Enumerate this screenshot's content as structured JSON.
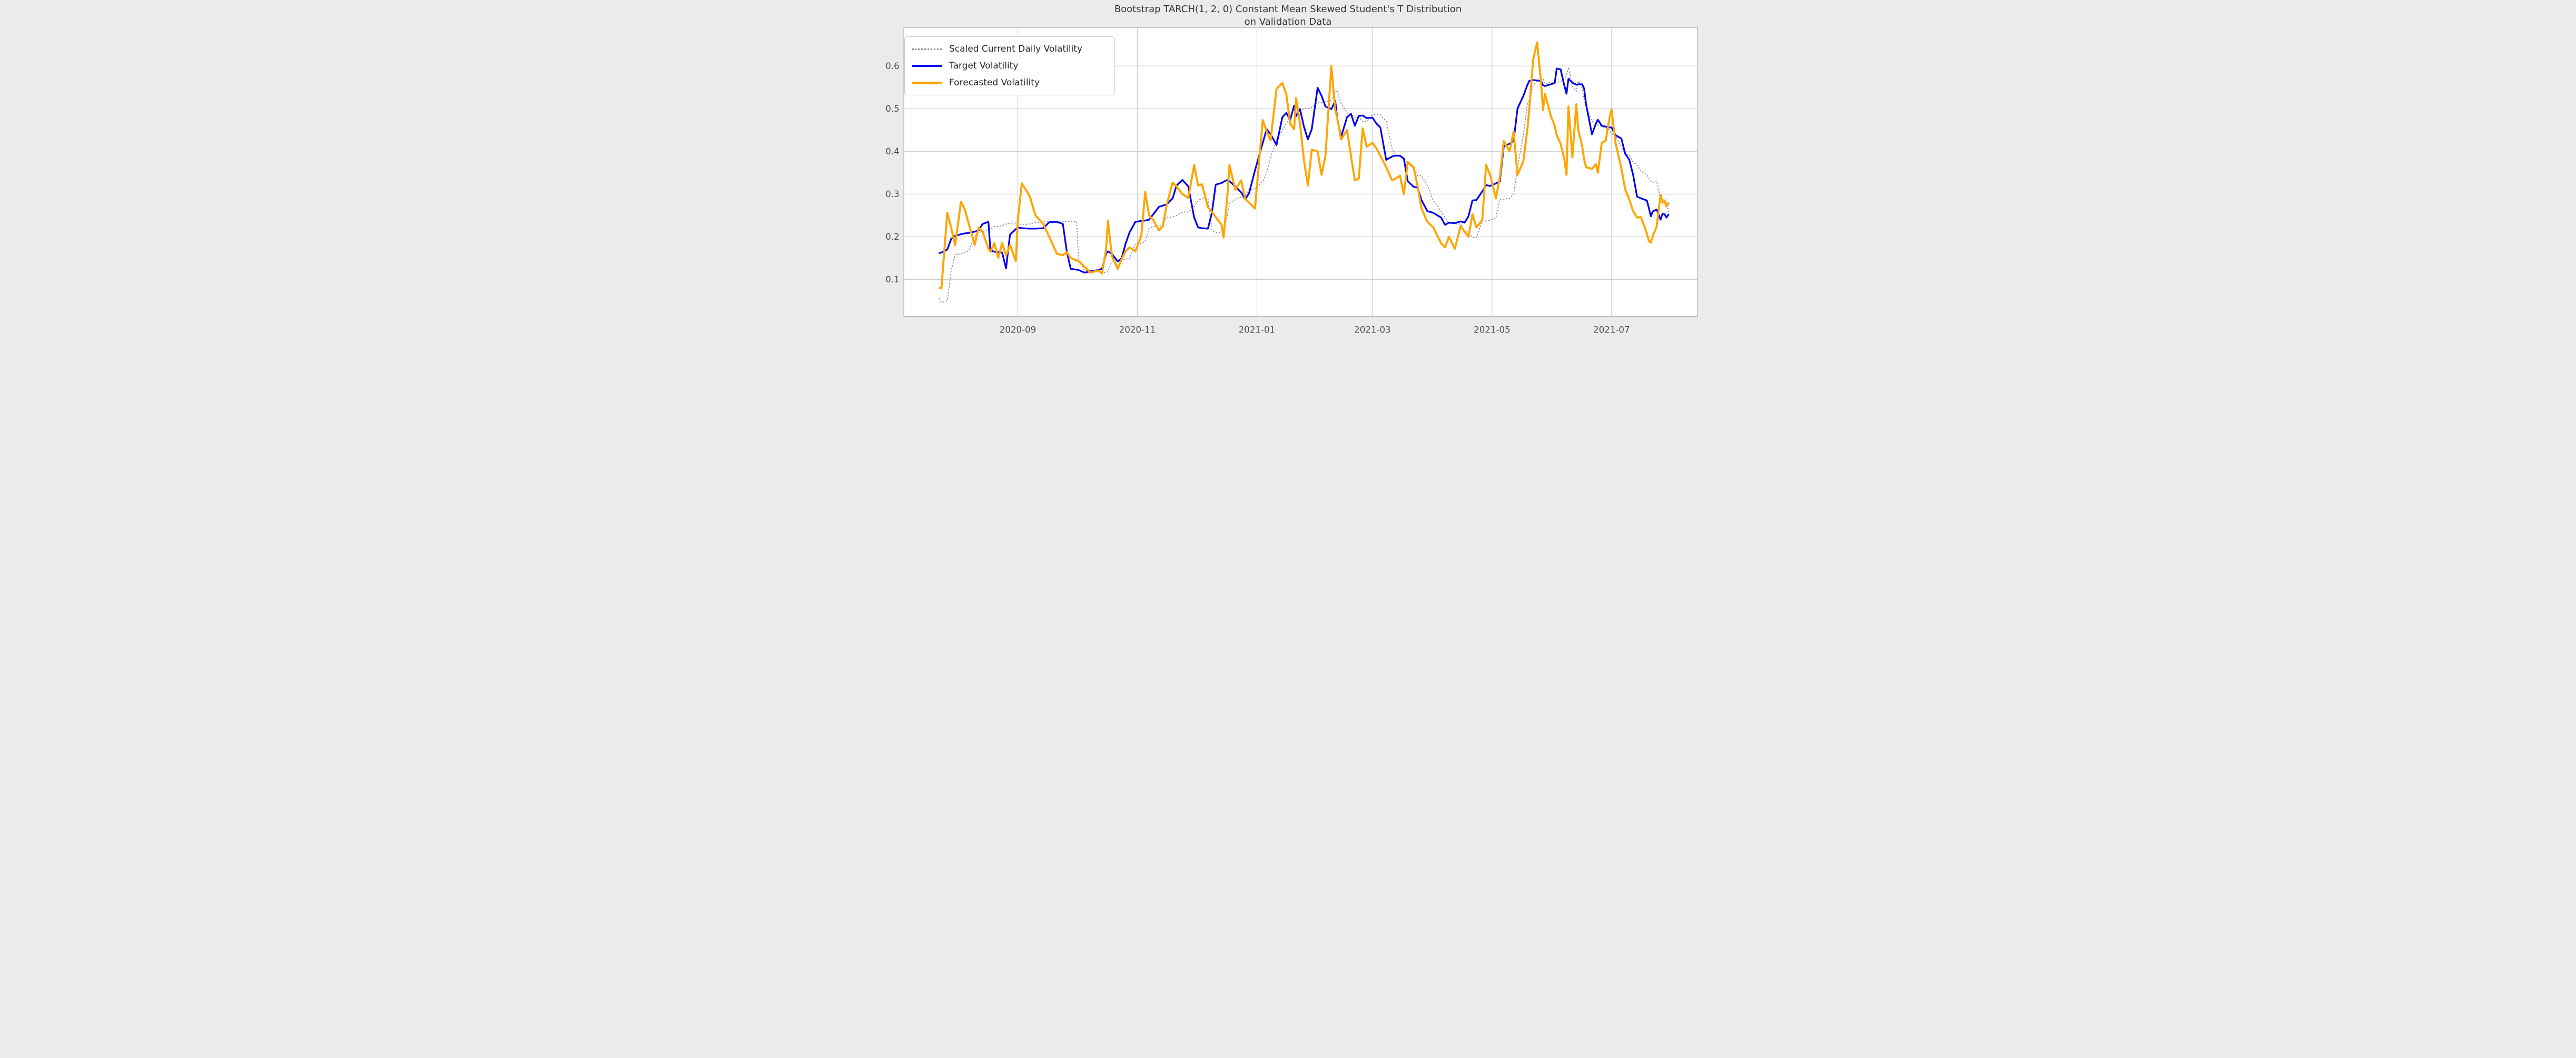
{
  "figure": {
    "title_line1": "Bootstrap TARCH(1, 2, 0) Constant Mean Skewed Student's T Distribution",
    "title_line2": "on Validation Data",
    "background_color": "#ebebeb",
    "plot_background_color": "#ffffff",
    "grid_color": "#cccccc",
    "spine_color": "#b3b3b3",
    "title_color": "#333333",
    "tick_label_color": "#4a4a4a"
  },
  "legend": {
    "position": "upper left",
    "entries": [
      {
        "label": "Scaled Current Daily Volatility",
        "color": "#8a8a8a",
        "style": "dotted"
      },
      {
        "label": "Target Volatility",
        "color": "#0000f0",
        "style": "solid-blue"
      },
      {
        "label": "Forecasted Volatility",
        "color": "#ffa500",
        "style": "solid-orange"
      }
    ]
  },
  "chart_data": {
    "type": "line",
    "title": "Bootstrap TARCH(1, 2, 0) Constant Mean Skewed Student's T Distribution on Validation Data",
    "xlabel": "",
    "ylabel": "",
    "grid": true,
    "legend_position": "upper left",
    "ylim": [
      0.015,
      0.69
    ],
    "y_ticks": [
      0.1,
      0.2,
      0.3,
      0.4,
      0.5,
      0.6
    ],
    "x_ticks": [
      {
        "label": "2020-09",
        "date": "2020-09-01"
      },
      {
        "label": "2020-11",
        "date": "2020-11-01"
      },
      {
        "label": "2021-01",
        "date": "2021-01-01"
      },
      {
        "label": "2021-03",
        "date": "2021-03-01"
      },
      {
        "label": "2021-05",
        "date": "2021-05-01"
      },
      {
        "label": "2021-07",
        "date": "2021-07-01"
      }
    ],
    "x": [
      "2020-07-23",
      "2020-07-24",
      "2020-07-27",
      "2020-07-29",
      "2020-07-31",
      "2020-08-03",
      "2020-08-05",
      "2020-08-07",
      "2020-08-10",
      "2020-08-12",
      "2020-08-14",
      "2020-08-17",
      "2020-08-18",
      "2020-08-20",
      "2020-08-22",
      "2020-08-24",
      "2020-08-26",
      "2020-08-28",
      "2020-08-31",
      "2020-09-01",
      "2020-09-03",
      "2020-09-07",
      "2020-09-10",
      "2020-09-14",
      "2020-09-17",
      "2020-09-21",
      "2020-09-24",
      "2020-09-26",
      "2020-09-28",
      "2020-10-01",
      "2020-10-02",
      "2020-10-05",
      "2020-10-08",
      "2020-10-12",
      "2020-10-14",
      "2020-10-16",
      "2020-10-17",
      "2020-10-19",
      "2020-10-22",
      "2020-10-24",
      "2020-10-26",
      "2020-10-28",
      "2020-10-31",
      "2020-11-03",
      "2020-11-05",
      "2020-11-07",
      "2020-11-09",
      "2020-11-12",
      "2020-11-14",
      "2020-11-16",
      "2020-11-19",
      "2020-11-21",
      "2020-11-24",
      "2020-11-27",
      "2020-11-30",
      "2020-12-02",
      "2020-12-04",
      "2020-12-07",
      "2020-12-09",
      "2020-12-11",
      "2020-12-14",
      "2020-12-15",
      "2020-12-17",
      "2020-12-18",
      "2020-12-21",
      "2020-12-24",
      "2020-12-26",
      "2020-12-28",
      "2020-12-31",
      "2021-01-04",
      "2021-01-06",
      "2021-01-08",
      "2021-01-11",
      "2021-01-14",
      "2021-01-16",
      "2021-01-18",
      "2021-01-20",
      "2021-01-21",
      "2021-01-23",
      "2021-01-25",
      "2021-01-27",
      "2021-01-29",
      "2021-02-01",
      "2021-02-03",
      "2021-02-05",
      "2021-02-08",
      "2021-02-10",
      "2021-02-11",
      "2021-02-13",
      "2021-02-16",
      "2021-02-18",
      "2021-02-20",
      "2021-02-22",
      "2021-02-24",
      "2021-02-26",
      "2021-03-01",
      "2021-03-03",
      "2021-03-05",
      "2021-03-08",
      "2021-03-11",
      "2021-03-13",
      "2021-03-15",
      "2021-03-17",
      "2021-03-19",
      "2021-03-22",
      "2021-03-24",
      "2021-03-26",
      "2021-03-29",
      "2021-04-01",
      "2021-04-05",
      "2021-04-07",
      "2021-04-09",
      "2021-04-12",
      "2021-04-15",
      "2021-04-17",
      "2021-04-19",
      "2021-04-21",
      "2021-04-23",
      "2021-04-26",
      "2021-04-28",
      "2021-04-30",
      "2021-05-03",
      "2021-05-05",
      "2021-05-07",
      "2021-05-10",
      "2021-05-12",
      "2021-05-14",
      "2021-05-17",
      "2021-05-19",
      "2021-05-20",
      "2021-05-22",
      "2021-05-24",
      "2021-05-26",
      "2021-05-27",
      "2021-05-28",
      "2021-05-31",
      "2021-06-02",
      "2021-06-03",
      "2021-06-05",
      "2021-06-07",
      "2021-06-08",
      "2021-06-09",
      "2021-06-11",
      "2021-06-13",
      "2021-06-14",
      "2021-06-16",
      "2021-06-17",
      "2021-06-18",
      "2021-06-21",
      "2021-06-23",
      "2021-06-24",
      "2021-06-26",
      "2021-06-28",
      "2021-06-30",
      "2021-07-01",
      "2021-07-03",
      "2021-07-06",
      "2021-07-08",
      "2021-07-10",
      "2021-07-12",
      "2021-07-14",
      "2021-07-16",
      "2021-07-19",
      "2021-07-20",
      "2021-07-21",
      "2021-07-22",
      "2021-07-24",
      "2021-07-26",
      "2021-07-27",
      "2021-07-28",
      "2021-07-29",
      "2021-07-30"
    ],
    "series": [
      {
        "name": "Scaled Current Daily Volatility",
        "color": "#8a8a8a",
        "line_style": "dotted",
        "line_width": 5.5,
        "values": [
          0.055,
          0.046,
          0.05,
          0.12,
          0.158,
          0.16,
          0.163,
          0.168,
          0.2,
          0.21,
          0.212,
          0.215,
          0.218,
          0.224,
          0.224,
          0.226,
          0.23,
          0.232,
          0.232,
          0.228,
          0.228,
          0.23,
          0.233,
          0.235,
          0.235,
          0.235,
          0.236,
          0.236,
          0.236,
          0.236,
          0.15,
          0.121,
          0.122,
          0.118,
          0.116,
          0.117,
          0.118,
          0.143,
          0.143,
          0.144,
          0.148,
          0.148,
          0.184,
          0.184,
          0.19,
          0.22,
          0.224,
          0.224,
          0.23,
          0.246,
          0.246,
          0.25,
          0.258,
          0.258,
          0.27,
          0.285,
          0.29,
          0.29,
          0.215,
          0.21,
          0.21,
          0.212,
          0.25,
          0.278,
          0.287,
          0.293,
          0.297,
          0.31,
          0.312,
          0.33,
          0.35,
          0.385,
          0.427,
          0.45,
          0.465,
          0.485,
          0.49,
          0.49,
          0.495,
          0.5,
          0.5,
          0.503,
          0.515,
          0.515,
          0.516,
          0.52,
          0.54,
          0.54,
          0.512,
          0.49,
          0.488,
          0.48,
          0.48,
          0.47,
          0.47,
          0.486,
          0.486,
          0.486,
          0.47,
          0.406,
          0.39,
          0.388,
          0.386,
          0.37,
          0.361,
          0.343,
          0.343,
          0.32,
          0.285,
          0.26,
          0.245,
          0.232,
          0.23,
          0.23,
          0.213,
          0.21,
          0.198,
          0.198,
          0.237,
          0.237,
          0.238,
          0.245,
          0.288,
          0.288,
          0.29,
          0.3,
          0.36,
          0.44,
          0.51,
          0.52,
          0.555,
          0.565,
          0.565,
          0.57,
          0.558,
          0.562,
          0.562,
          0.562,
          0.563,
          0.572,
          0.578,
          0.597,
          0.553,
          0.54,
          0.565,
          0.548,
          0.521,
          0.504,
          0.47,
          0.465,
          0.462,
          0.458,
          0.455,
          0.45,
          0.44,
          0.437,
          0.41,
          0.392,
          0.392,
          0.375,
          0.368,
          0.354,
          0.345,
          0.338,
          0.331,
          0.327,
          0.331,
          0.289,
          0.288,
          0.288,
          0.285,
          0.259
        ]
      },
      {
        "name": "Target Volatility",
        "color": "#0000f0",
        "line_style": "solid",
        "line_width": 10,
        "values": [
          0.162,
          0.163,
          0.17,
          0.195,
          0.202,
          0.206,
          0.208,
          0.209,
          0.212,
          0.215,
          0.23,
          0.235,
          0.168,
          0.165,
          0.164,
          0.163,
          0.126,
          0.205,
          0.218,
          0.222,
          0.22,
          0.219,
          0.219,
          0.22,
          0.234,
          0.235,
          0.23,
          0.165,
          0.125,
          0.123,
          0.122,
          0.116,
          0.119,
          0.122,
          0.125,
          0.16,
          0.166,
          0.16,
          0.142,
          0.15,
          0.184,
          0.21,
          0.235,
          0.237,
          0.238,
          0.24,
          0.252,
          0.27,
          0.273,
          0.276,
          0.29,
          0.32,
          0.333,
          0.318,
          0.245,
          0.222,
          0.22,
          0.219,
          0.255,
          0.322,
          0.326,
          0.329,
          0.333,
          0.33,
          0.318,
          0.304,
          0.288,
          0.302,
          0.355,
          0.42,
          0.452,
          0.44,
          0.415,
          0.48,
          0.49,
          0.474,
          0.507,
          0.482,
          0.499,
          0.458,
          0.428,
          0.452,
          0.549,
          0.53,
          0.505,
          0.499,
          0.518,
          0.478,
          0.434,
          0.48,
          0.488,
          0.46,
          0.483,
          0.484,
          0.478,
          0.479,
          0.465,
          0.456,
          0.38,
          0.388,
          0.39,
          0.39,
          0.383,
          0.33,
          0.317,
          0.315,
          0.286,
          0.26,
          0.256,
          0.245,
          0.228,
          0.233,
          0.232,
          0.236,
          0.233,
          0.248,
          0.285,
          0.286,
          0.306,
          0.321,
          0.319,
          0.325,
          0.33,
          0.412,
          0.418,
          0.424,
          0.5,
          0.53,
          0.555,
          0.565,
          0.567,
          0.566,
          0.565,
          0.555,
          0.553,
          0.557,
          0.56,
          0.594,
          0.592,
          0.552,
          0.535,
          0.57,
          0.561,
          0.556,
          0.557,
          0.557,
          0.547,
          0.51,
          0.44,
          0.465,
          0.474,
          0.46,
          0.458,
          0.456,
          0.456,
          0.438,
          0.43,
          0.394,
          0.381,
          0.345,
          0.294,
          0.29,
          0.285,
          0.268,
          0.248,
          0.259,
          0.264,
          0.24,
          0.254,
          0.253,
          0.245,
          0.252
        ]
      },
      {
        "name": "Forecasted Volatility",
        "color": "#ffa500",
        "line_style": "solid",
        "line_width": 12,
        "values": [
          0.08,
          0.079,
          0.256,
          0.221,
          0.18,
          0.282,
          0.263,
          0.23,
          0.181,
          0.222,
          0.212,
          0.172,
          0.165,
          0.185,
          0.151,
          0.185,
          0.156,
          0.181,
          0.143,
          0.24,
          0.325,
          0.296,
          0.25,
          0.23,
          0.2,
          0.16,
          0.157,
          0.164,
          0.15,
          0.145,
          0.143,
          0.13,
          0.116,
          0.121,
          0.114,
          0.17,
          0.237,
          0.155,
          0.125,
          0.148,
          0.166,
          0.175,
          0.166,
          0.202,
          0.305,
          0.25,
          0.24,
          0.215,
          0.225,
          0.275,
          0.327,
          0.318,
          0.3,
          0.291,
          0.368,
          0.32,
          0.323,
          0.269,
          0.259,
          0.246,
          0.228,
          0.198,
          0.3,
          0.368,
          0.31,
          0.332,
          0.289,
          0.28,
          0.266,
          0.473,
          0.447,
          0.426,
          0.546,
          0.56,
          0.534,
          0.465,
          0.452,
          0.525,
          0.465,
          0.38,
          0.32,
          0.404,
          0.4,
          0.345,
          0.39,
          0.6,
          0.497,
          0.478,
          0.428,
          0.45,
          0.39,
          0.332,
          0.336,
          0.454,
          0.411,
          0.42,
          0.407,
          0.39,
          0.363,
          0.332,
          0.337,
          0.343,
          0.3,
          0.375,
          0.363,
          0.319,
          0.266,
          0.235,
          0.222,
          0.185,
          0.175,
          0.2,
          0.172,
          0.225,
          0.212,
          0.2,
          0.253,
          0.222,
          0.239,
          0.368,
          0.345,
          0.29,
          0.34,
          0.424,
          0.4,
          0.447,
          0.345,
          0.377,
          0.45,
          0.5,
          0.615,
          0.655,
          0.563,
          0.497,
          0.535,
          0.483,
          0.46,
          0.438,
          0.418,
          0.38,
          0.345,
          0.505,
          0.386,
          0.51,
          0.45,
          0.412,
          0.381,
          0.363,
          0.359,
          0.37,
          0.35,
          0.42,
          0.425,
          0.48,
          0.498,
          0.42,
          0.36,
          0.31,
          0.288,
          0.26,
          0.245,
          0.246,
          0.208,
          0.191,
          0.186,
          0.201,
          0.224,
          0.298,
          0.28,
          0.284,
          0.271,
          0.278
        ]
      }
    ]
  }
}
